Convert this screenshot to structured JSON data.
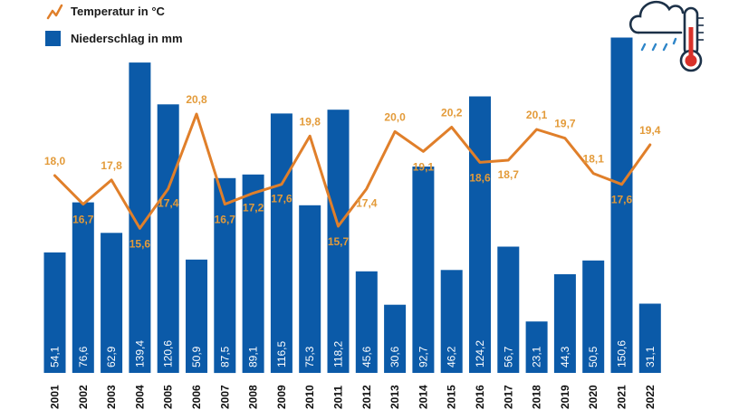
{
  "chart_data": {
    "type": "bar",
    "categories": [
      "2001",
      "2002",
      "2003",
      "2004",
      "2005",
      "2006",
      "2007",
      "2008",
      "2009",
      "2010",
      "2011",
      "2012",
      "2013",
      "2014",
      "2015",
      "2016",
      "2017",
      "2018",
      "2019",
      "2020",
      "2021",
      "2022"
    ],
    "series": [
      {
        "name": "Niederschlag in mm",
        "type": "bar",
        "values": [
          54.1,
          76.6,
          62.9,
          139.4,
          120.6,
          50.9,
          87.5,
          89.1,
          116.5,
          75.3,
          118.2,
          45.6,
          30.6,
          92.7,
          46.2,
          124.2,
          56.7,
          23.1,
          44.3,
          50.5,
          150.6,
          31.1
        ],
        "labels": [
          "54,1",
          "76,6",
          "62,9",
          "139,4",
          "120,6",
          "50,9",
          "87,5",
          "89,1",
          "116,5",
          "75,3",
          "118,2",
          "45,6",
          "30,6",
          "92,7",
          "46,2",
          "124,2",
          "56,7",
          "23,1",
          "44,3",
          "50,5",
          "150,6",
          "31,1"
        ]
      },
      {
        "name": "Temperatur in °C",
        "type": "line",
        "values": [
          18.0,
          16.7,
          17.8,
          15.6,
          17.4,
          20.8,
          16.7,
          17.2,
          17.6,
          19.8,
          15.7,
          17.4,
          20.0,
          19.1,
          20.2,
          18.6,
          18.7,
          20.1,
          19.7,
          18.1,
          17.6,
          19.4
        ],
        "labels": [
          "18,0",
          "16,7",
          "17,8",
          "15,6",
          "17,4",
          "20,8",
          "16,7",
          "17,2",
          "17,6",
          "19,8",
          "15,7",
          "17,4",
          "20,0",
          "19,1",
          "20,2",
          "18,6",
          "18,7",
          "20,1",
          "19,7",
          "18,1",
          "17,6",
          "19,4"
        ]
      }
    ],
    "legend": {
      "position": "top-left",
      "entries": [
        "Temperatur in °C",
        "Niederschlag in mm"
      ]
    },
    "grid": false
  },
  "colors": {
    "bar": "#0b5aa8",
    "line": "#e07f2a",
    "temp_label": "#e39b3a",
    "icon": "#1c3148",
    "thermo_red": "#d8312a",
    "rain": "#2f86c9"
  },
  "icons": [
    "weather-cloud-rain-thermometer-icon"
  ]
}
